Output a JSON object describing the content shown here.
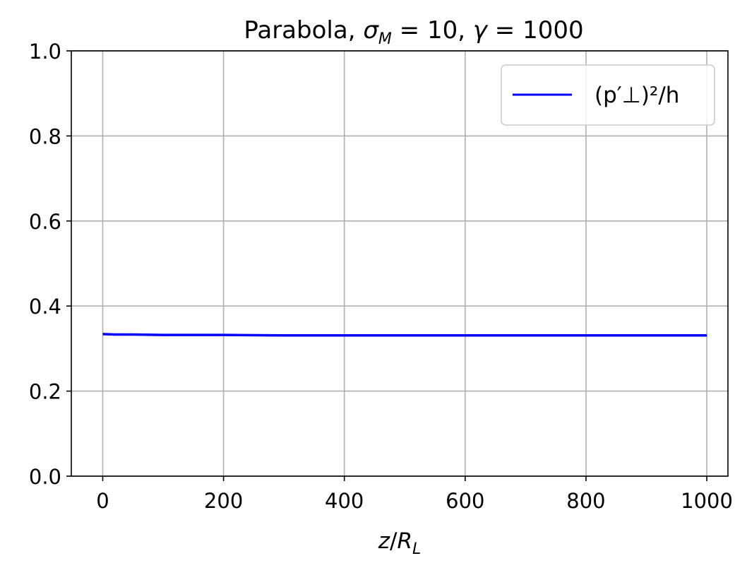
{
  "chart_data": {
    "type": "line",
    "title_prefix": "Parabola",
    "title_sigma": "σ",
    "title_sigma_sub": "M",
    "title_eq1": " = 10, ",
    "title_gamma": "γ",
    "title_eq2": " = 1000",
    "xlabel_z": "z",
    "xlabel_slash": "/",
    "xlabel_R": "R",
    "xlabel_sub": "L",
    "xlim": [
      -52,
      1035
    ],
    "ylim": [
      0.0,
      1.0
    ],
    "xticks": [
      0,
      200,
      400,
      600,
      800,
      1000
    ],
    "xtick_labels": [
      "0",
      "200",
      "400",
      "600",
      "800",
      "1000"
    ],
    "yticks": [
      0.0,
      0.2,
      0.4,
      0.6,
      0.8,
      1.0
    ],
    "ytick_labels": [
      "0.0",
      "0.2",
      "0.4",
      "0.6",
      "0.8",
      "1.0"
    ],
    "grid": true,
    "legend_position": "top-right",
    "series": [
      {
        "name": "(p′⊥)²/h",
        "color": "#0000ff",
        "x": [
          0,
          20,
          50,
          100,
          200,
          300,
          400,
          500,
          600,
          700,
          800,
          900,
          1000
        ],
        "y": [
          0.334,
          0.333,
          0.333,
          0.332,
          0.332,
          0.331,
          0.331,
          0.331,
          0.331,
          0.331,
          0.331,
          0.331,
          0.331
        ]
      }
    ]
  }
}
